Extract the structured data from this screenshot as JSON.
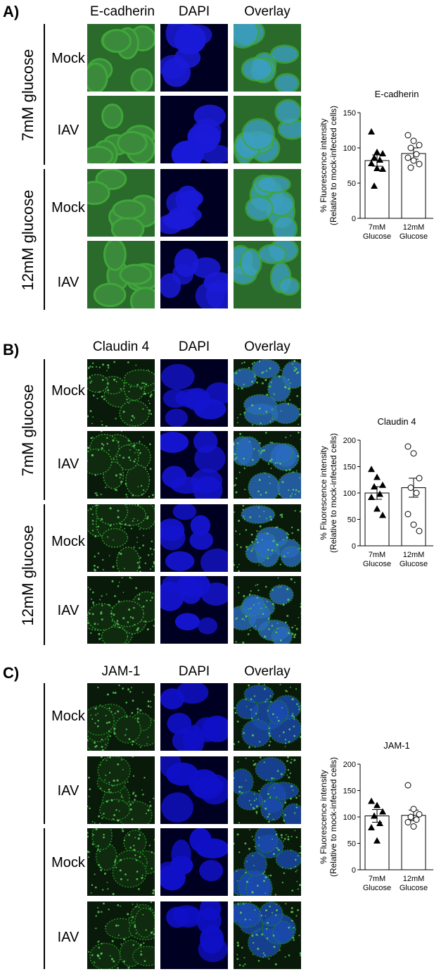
{
  "panels": [
    {
      "letter": "A)",
      "columns": [
        "E-cadherin",
        "DAPI",
        "Overlay"
      ],
      "conditions": [
        "7mM glucose",
        "12mM glucose"
      ],
      "rows": [
        "Mock",
        "IAV",
        "Mock",
        "IAV"
      ],
      "marker_colors": {
        "marker": "#3fa63a",
        "dapi": "#1a1ad8",
        "overlay": "#3c9fc0"
      }
    },
    {
      "letter": "B)",
      "columns": [
        "Claudin 4",
        "DAPI",
        "Overlay"
      ],
      "conditions": [
        "7mM glucose",
        "12mM glucose"
      ],
      "rows": [
        "Mock",
        "IAV",
        "Mock",
        "IAV"
      ],
      "marker_colors": {
        "marker": "#2e9a2a",
        "dapi": "#1414d0",
        "overlay": "#2a6ac0"
      }
    },
    {
      "letter": "C)",
      "columns": [
        "JAM-1",
        "DAPI",
        "Overlay"
      ],
      "conditions": [
        "",
        ""
      ],
      "rows": [
        "Mock",
        "IAV",
        "Mock",
        "IAV"
      ],
      "marker_colors": {
        "marker": "#1d8a1d",
        "dapi": "#1010c8",
        "overlay": "#1a4ab0"
      }
    }
  ],
  "chart_data": [
    {
      "type": "bar",
      "title": "E-cadherin",
      "ylabel": "% Fluorescence intensity",
      "ylabel2": "(Relative to mock-infected cells)",
      "categories": [
        "7mM Glucose",
        "12mM Glucose"
      ],
      "cat_line1": [
        "7mM",
        "12mM"
      ],
      "cat_line2": [
        "Glucose",
        "Glucose"
      ],
      "values": [
        82,
        92
      ],
      "errors": [
        8,
        8
      ],
      "ylim": [
        0,
        150
      ],
      "yticks": [
        0,
        50,
        100,
        150
      ],
      "points": [
        [
          123,
          94,
          92,
          86,
          83,
          78,
          71,
          70,
          46
        ],
        [
          118,
          110,
          104,
          100,
          91,
          86,
          82,
          77,
          72
        ]
      ],
      "markers": [
        "filled-triangle",
        "open-circle"
      ]
    },
    {
      "type": "bar",
      "title": "Claudin 4",
      "ylabel": "% Fluorescence intensity",
      "ylabel2": "(Relative to mock-infected cells)",
      "categories": [
        "7mM Glucose",
        "12mM Glucose"
      ],
      "cat_line1": [
        "7mM",
        "12mM"
      ],
      "cat_line2": [
        "Glucose",
        "Glucose"
      ],
      "values": [
        100,
        110
      ],
      "errors": [
        12,
        18
      ],
      "ylim": [
        0,
        200
      ],
      "yticks": [
        0,
        50,
        100,
        150,
        200
      ],
      "points": [
        [
          145,
          130,
          115,
          112,
          98,
          92,
          70,
          58
        ],
        [
          188,
          175,
          128,
          110,
          100,
          60,
          40,
          28
        ]
      ],
      "markers": [
        "filled-triangle",
        "open-circle"
      ]
    },
    {
      "type": "bar",
      "title": "JAM-1",
      "ylabel": "% Fluorescence intensity",
      "ylabel2": "(Relative to mock-infected cells)",
      "categories": [
        "7mM Glucose",
        "12mM Glucose"
      ],
      "cat_line1": [
        "7mM",
        "12mM"
      ],
      "cat_line2": [
        "Glucose",
        "Glucose"
      ],
      "values": [
        102,
        103
      ],
      "errors": [
        12,
        10
      ],
      "ylim": [
        0,
        200
      ],
      "yticks": [
        0,
        50,
        100,
        150,
        200
      ],
      "points": [
        [
          130,
          122,
          110,
          102,
          88,
          80,
          55
        ],
        [
          160,
          115,
          105,
          100,
          95,
          90,
          82
        ]
      ],
      "markers": [
        "filled-triangle",
        "open-circle"
      ]
    }
  ]
}
